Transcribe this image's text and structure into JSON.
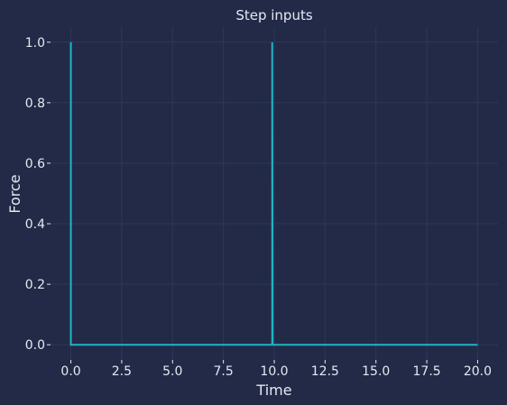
{
  "chart_data": {
    "type": "line",
    "title": "Step inputs",
    "xlabel": "Time",
    "ylabel": "Force",
    "xlim": [
      -1,
      21
    ],
    "ylim": [
      -0.05,
      1.05
    ],
    "xticks": [
      0.0,
      2.5,
      5.0,
      7.5,
      10.0,
      12.5,
      15.0,
      17.5,
      20.0
    ],
    "yticks": [
      0.0,
      0.2,
      0.4,
      0.6,
      0.8,
      1.0
    ],
    "xtick_labels": [
      "0.0",
      "2.5",
      "5.0",
      "7.5",
      "10.0",
      "12.5",
      "15.0",
      "17.5",
      "20.0"
    ],
    "ytick_labels": [
      "0.0",
      "0.2",
      "0.4",
      "0.6",
      "0.8",
      "1.0"
    ],
    "grid": true,
    "series": [
      {
        "color": "#1fb5c4",
        "x": [
          0.0,
          0.0,
          0.02,
          9.9,
          9.9,
          9.92,
          20.0
        ],
        "y": [
          1.0,
          0.0,
          0.0,
          0.0,
          1.0,
          0.0,
          0.0
        ]
      }
    ],
    "colors": {
      "background": "#222a48",
      "grid": "#2c3758",
      "text": "#e6e8f0"
    }
  }
}
